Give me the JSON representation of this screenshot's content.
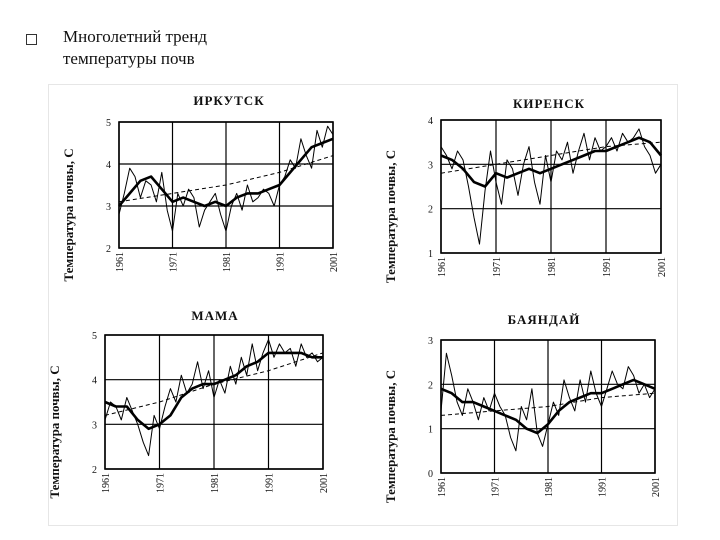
{
  "slide": {
    "title_line1": "Многолетний тренд",
    "title_line2": "температуры почв"
  },
  "chart_data": [
    {
      "type": "line",
      "title": "ИРКУТСК",
      "ylabel": "Температура почвы, С",
      "xlabel": "",
      "ylim": [
        2,
        5
      ],
      "xlim": [
        1961,
        2001
      ],
      "yticks": [
        2,
        3,
        4,
        5
      ],
      "xticks": [
        1961,
        1971,
        1981,
        1991,
        2001
      ],
      "grid": true,
      "series": [
        {
          "style": "thin",
          "x": [
            1961,
            1962,
            1963,
            1964,
            1965,
            1966,
            1967,
            1968,
            1969,
            1970,
            1971,
            1972,
            1973,
            1974,
            1975,
            1976,
            1977,
            1978,
            1979,
            1980,
            1981,
            1982,
            1983,
            1984,
            1985,
            1986,
            1987,
            1988,
            1989,
            1990,
            1991,
            1992,
            1993,
            1994,
            1995,
            1996,
            1997,
            1998,
            1999,
            2000,
            2001
          ],
          "y": [
            2.8,
            3.3,
            3.9,
            3.7,
            3.2,
            3.6,
            3.5,
            3.1,
            3.8,
            2.9,
            2.4,
            3.3,
            3.0,
            3.4,
            3.2,
            2.5,
            2.9,
            3.1,
            3.3,
            2.8,
            2.4,
            3.0,
            3.3,
            2.9,
            3.5,
            3.1,
            3.2,
            3.4,
            3.3,
            3.0,
            3.5,
            3.7,
            4.1,
            3.9,
            4.6,
            4.2,
            3.9,
            4.8,
            4.4,
            4.9,
            4.7
          ]
        },
        {
          "style": "bold",
          "x": [
            1961,
            1963,
            1965,
            1967,
            1969,
            1971,
            1973,
            1975,
            1977,
            1979,
            1981,
            1983,
            1985,
            1987,
            1989,
            1991,
            1993,
            1995,
            1997,
            1999,
            2001
          ],
          "y": [
            3.0,
            3.3,
            3.6,
            3.7,
            3.4,
            3.1,
            3.2,
            3.1,
            3.0,
            3.1,
            3.0,
            3.2,
            3.3,
            3.3,
            3.4,
            3.5,
            3.8,
            4.1,
            4.4,
            4.5,
            4.6
          ]
        },
        {
          "style": "dashed",
          "x": [
            1961,
            1971,
            1981,
            1991,
            2001
          ],
          "y": [
            3.1,
            3.3,
            3.5,
            3.8,
            4.2
          ]
        }
      ]
    },
    {
      "type": "line",
      "title": "КИРЕНСК",
      "ylabel": "Температура почвы, С",
      "xlabel": "",
      "ylim": [
        1,
        4
      ],
      "xlim": [
        1961,
        2001
      ],
      "yticks": [
        1,
        2,
        3,
        4
      ],
      "xticks": [
        1961,
        1971,
        1981,
        1991,
        2001
      ],
      "grid": true,
      "series": [
        {
          "style": "thin",
          "x": [
            1961,
            1962,
            1963,
            1964,
            1965,
            1966,
            1967,
            1968,
            1969,
            1970,
            1971,
            1972,
            1973,
            1974,
            1975,
            1976,
            1977,
            1978,
            1979,
            1980,
            1981,
            1982,
            1983,
            1984,
            1985,
            1986,
            1987,
            1988,
            1989,
            1990,
            1991,
            1992,
            1993,
            1994,
            1995,
            1996,
            1997,
            1998,
            1999,
            2000,
            2001
          ],
          "y": [
            3.4,
            3.2,
            2.9,
            3.3,
            3.1,
            2.5,
            1.8,
            1.2,
            2.4,
            3.3,
            2.6,
            2.1,
            3.1,
            2.9,
            2.3,
            3.0,
            3.4,
            2.6,
            2.1,
            3.2,
            2.6,
            3.3,
            3.1,
            3.5,
            2.8,
            3.3,
            3.7,
            3.1,
            3.6,
            3.3,
            3.4,
            3.6,
            3.3,
            3.7,
            3.5,
            3.6,
            3.8,
            3.4,
            3.2,
            2.8,
            3.0
          ]
        },
        {
          "style": "bold",
          "x": [
            1961,
            1963,
            1965,
            1967,
            1969,
            1971,
            1973,
            1975,
            1977,
            1979,
            1981,
            1983,
            1985,
            1987,
            1989,
            1991,
            1993,
            1995,
            1997,
            1999,
            2001
          ],
          "y": [
            3.2,
            3.1,
            2.9,
            2.6,
            2.5,
            2.8,
            2.7,
            2.8,
            2.9,
            2.8,
            2.9,
            3.0,
            3.1,
            3.2,
            3.3,
            3.3,
            3.4,
            3.5,
            3.6,
            3.5,
            3.2
          ]
        },
        {
          "style": "dashed",
          "x": [
            1961,
            1971,
            1981,
            1991,
            2001
          ],
          "y": [
            2.8,
            3.0,
            3.2,
            3.4,
            3.5
          ]
        }
      ]
    },
    {
      "type": "line",
      "title": "МАМА",
      "ylabel": "Температура почвы, С",
      "xlabel": "",
      "ylim": [
        2,
        5
      ],
      "xlim": [
        1961,
        2001
      ],
      "yticks": [
        2,
        3,
        4,
        5
      ],
      "xticks": [
        1961,
        1971,
        1981,
        1991,
        2001
      ],
      "grid": true,
      "series": [
        {
          "style": "thin",
          "x": [
            1961,
            1962,
            1963,
            1964,
            1965,
            1966,
            1967,
            1968,
            1969,
            1970,
            1971,
            1972,
            1973,
            1974,
            1975,
            1976,
            1977,
            1978,
            1979,
            1980,
            1981,
            1982,
            1983,
            1984,
            1985,
            1986,
            1987,
            1988,
            1989,
            1990,
            1991,
            1992,
            1993,
            1994,
            1995,
            1996,
            1997,
            1998,
            1999,
            2000,
            2001
          ],
          "y": [
            3.1,
            3.5,
            3.4,
            3.1,
            3.6,
            3.3,
            3.0,
            2.6,
            2.3,
            3.2,
            2.9,
            3.4,
            3.8,
            3.5,
            4.1,
            3.7,
            3.9,
            4.4,
            3.8,
            4.2,
            3.6,
            4.0,
            3.7,
            4.3,
            3.9,
            4.5,
            4.1,
            4.8,
            4.2,
            4.6,
            4.9,
            4.5,
            4.8,
            4.6,
            4.7,
            4.3,
            4.8,
            4.5,
            4.6,
            4.4,
            4.5
          ]
        },
        {
          "style": "bold",
          "x": [
            1961,
            1963,
            1965,
            1967,
            1969,
            1971,
            1973,
            1975,
            1977,
            1979,
            1981,
            1983,
            1985,
            1987,
            1989,
            1991,
            1993,
            1995,
            1997,
            1999,
            2001
          ],
          "y": [
            3.5,
            3.4,
            3.4,
            3.1,
            2.9,
            3.0,
            3.2,
            3.6,
            3.8,
            3.9,
            3.9,
            4.0,
            4.1,
            4.3,
            4.4,
            4.6,
            4.6,
            4.6,
            4.6,
            4.5,
            4.5
          ]
        },
        {
          "style": "dashed",
          "x": [
            1961,
            1971,
            1981,
            1991,
            2001
          ],
          "y": [
            3.2,
            3.5,
            3.9,
            4.2,
            4.6
          ]
        }
      ]
    },
    {
      "type": "line",
      "title": "БАЯНДАЙ",
      "ylabel": "Температура почвы, С",
      "xlabel": "",
      "ylim": [
        0,
        3
      ],
      "xlim": [
        1961,
        2001
      ],
      "yticks": [
        0,
        1,
        2,
        3
      ],
      "xticks": [
        1961,
        1971,
        1981,
        1991,
        2001
      ],
      "grid": true,
      "series": [
        {
          "style": "thin",
          "x": [
            1961,
            1962,
            1963,
            1964,
            1965,
            1966,
            1967,
            1968,
            1969,
            1970,
            1971,
            1972,
            1973,
            1974,
            1975,
            1976,
            1977,
            1978,
            1979,
            1980,
            1981,
            1982,
            1983,
            1984,
            1985,
            1986,
            1987,
            1988,
            1989,
            1990,
            1991,
            1992,
            1993,
            1994,
            1995,
            1996,
            1997,
            1998,
            1999,
            2000,
            2001
          ],
          "y": [
            1.4,
            2.7,
            2.2,
            1.6,
            1.3,
            1.9,
            1.6,
            1.2,
            1.7,
            1.4,
            1.8,
            1.5,
            1.3,
            0.8,
            0.5,
            1.5,
            1.2,
            1.9,
            0.9,
            0.6,
            1.1,
            1.6,
            1.3,
            2.1,
            1.7,
            1.4,
            2.1,
            1.6,
            2.3,
            1.8,
            1.5,
            1.9,
            2.3,
            2.0,
            1.9,
            2.4,
            2.2,
            1.8,
            2.0,
            1.7,
            1.9
          ]
        },
        {
          "style": "bold",
          "x": [
            1961,
            1963,
            1965,
            1967,
            1969,
            1971,
            1973,
            1975,
            1977,
            1979,
            1981,
            1983,
            1985,
            1987,
            1989,
            1991,
            1993,
            1995,
            1997,
            1999,
            2001
          ],
          "y": [
            1.9,
            1.8,
            1.6,
            1.6,
            1.5,
            1.4,
            1.3,
            1.2,
            1.0,
            0.9,
            1.1,
            1.4,
            1.6,
            1.7,
            1.8,
            1.8,
            1.9,
            2.0,
            2.1,
            2.0,
            1.9
          ]
        },
        {
          "style": "dashed",
          "x": [
            1961,
            1971,
            1981,
            1991,
            2001
          ],
          "y": [
            1.3,
            1.4,
            1.5,
            1.7,
            1.8
          ]
        }
      ]
    }
  ]
}
